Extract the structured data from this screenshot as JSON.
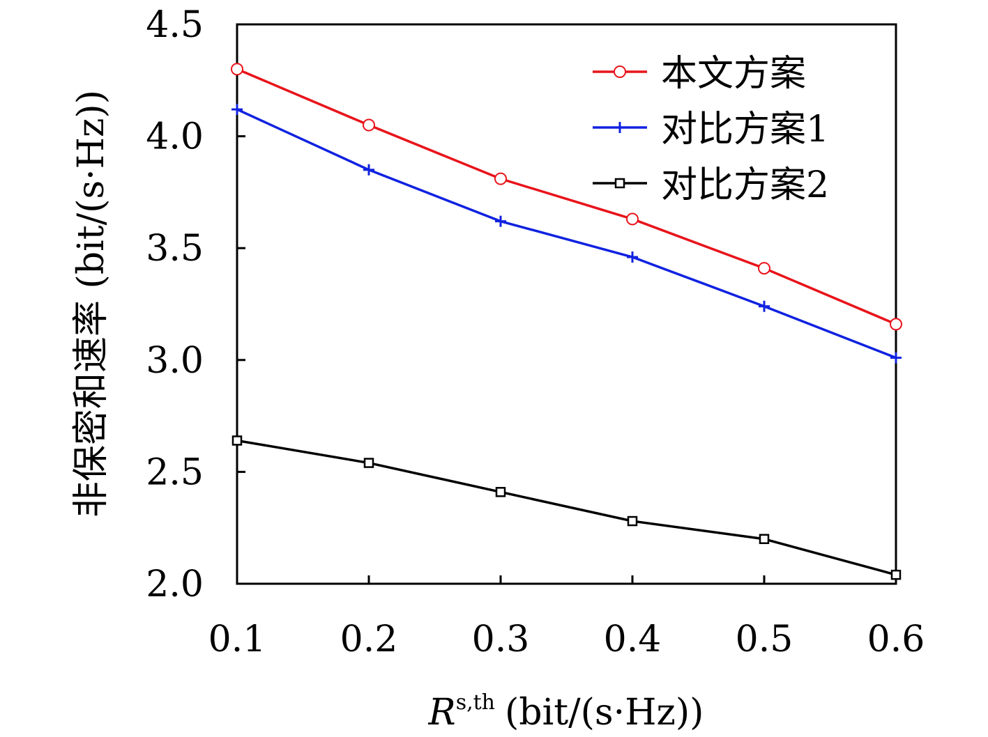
{
  "chart_data": {
    "type": "line",
    "x": [
      0.1,
      0.2,
      0.3,
      0.4,
      0.5,
      0.6
    ],
    "series": [
      {
        "name": "本文方案",
        "values": [
          4.3,
          4.05,
          3.81,
          3.63,
          3.41,
          3.16
        ],
        "color": "#e8141b",
        "marker": "circle"
      },
      {
        "name": "对比方案1",
        "values": [
          4.12,
          3.85,
          3.62,
          3.46,
          3.24,
          3.01
        ],
        "color": "#1022e0",
        "marker": "plus"
      },
      {
        "name": "对比方案2",
        "values": [
          2.64,
          2.54,
          2.41,
          2.28,
          2.2,
          2.04
        ],
        "color": "#000000",
        "marker": "square"
      }
    ],
    "xlabel_main": "R",
    "xlabel_superscript": "s,th",
    "xlabel_unit": "(bit/(s·Hz))",
    "ylabel": "非保密和速率 (bit/(s·Hz))",
    "xticks": [
      "0.1",
      "0.2",
      "0.3",
      "0.4",
      "0.5",
      "0.6"
    ],
    "yticks": [
      "2.0",
      "2.5",
      "3.0",
      "3.5",
      "4.0",
      "4.5"
    ],
    "xlim": [
      0.1,
      0.6
    ],
    "ylim": [
      2.0,
      4.5
    ],
    "grid": false,
    "legend_position": "top-right"
  }
}
